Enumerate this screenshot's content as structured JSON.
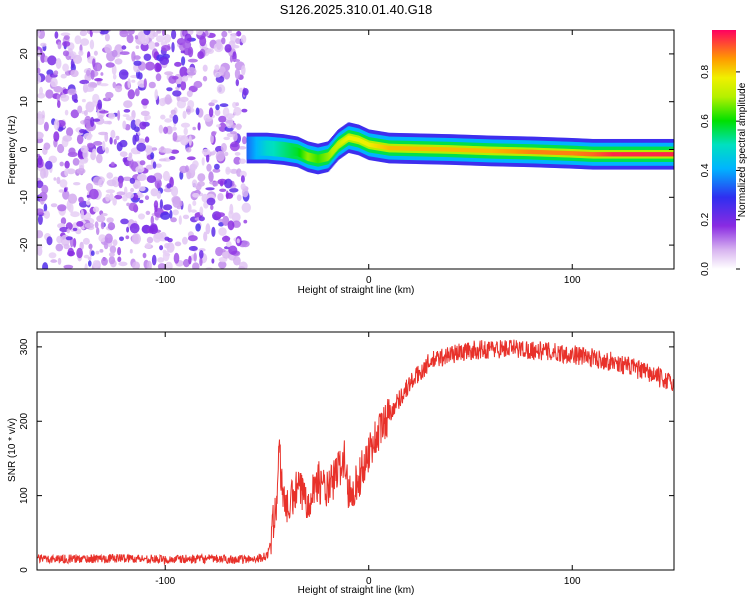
{
  "page_title": "S126.2025.310.01.40.G18",
  "chart_data": [
    {
      "type": "heatmap",
      "title": "S126.2025.310.01.40.G18",
      "xlabel": "Height of straight line (km)",
      "ylabel": "Frequency (Hz)",
      "xlim": [
        -163,
        150
      ],
      "ylim": [
        -25,
        25
      ],
      "x_ticks": [
        -100,
        0,
        100
      ],
      "y_ticks": [
        -20,
        -10,
        0,
        10,
        20
      ],
      "noise_region": [
        -163,
        -60
      ],
      "ridge": {
        "x": [
          -60,
          -50,
          -42,
          -35,
          -30,
          -25,
          -20,
          -15,
          -10,
          -5,
          0,
          10,
          20,
          40,
          60,
          80,
          100,
          110,
          120,
          150
        ],
        "freq": [
          0.3,
          0.3,
          0.0,
          -0.5,
          -1.5,
          -2.0,
          -1.5,
          1.0,
          2.5,
          2.0,
          1.0,
          0.3,
          0.2,
          0.0,
          -0.3,
          -0.5,
          -0.8,
          -1.0,
          -1.0,
          -1.0
        ],
        "amplitude": [
          0.35,
          0.5,
          0.55,
          0.6,
          0.7,
          0.65,
          0.7,
          0.75,
          0.8,
          0.8,
          0.8,
          0.85,
          0.85,
          0.85,
          0.85,
          0.9,
          0.9,
          0.92,
          0.97,
          0.97
        ]
      },
      "colorbar": {
        "label": "Normalized spectral amplitude",
        "range": [
          0,
          0.97
        ],
        "ticks": [
          0.0,
          0.2,
          0.4,
          0.6,
          0.8
        ]
      }
    },
    {
      "type": "line",
      "xlabel": "Height of straight line (km)",
      "ylabel": "SNR (10 * v/v)",
      "xlim": [
        -163,
        150
      ],
      "ylim": [
        0,
        320
      ],
      "x_ticks": [
        -100,
        0,
        100
      ],
      "y_ticks": [
        0,
        100,
        200,
        300
      ],
      "series": [
        {
          "name": "SNR",
          "color": "#e8312a",
          "x": [
            -163,
            -140,
            -120,
            -100,
            -80,
            -60,
            -50,
            -48,
            -45,
            -44,
            -43,
            -40,
            -35,
            -30,
            -25,
            -20,
            -15,
            -12,
            -10,
            -5,
            0,
            5,
            10,
            15,
            20,
            25,
            30,
            40,
            50,
            60,
            70,
            80,
            90,
            100,
            110,
            120,
            130,
            140,
            150
          ],
          "values": [
            15,
            15,
            16,
            14,
            15,
            14,
            18,
            40,
            100,
            170,
            120,
            80,
            110,
            95,
            120,
            105,
            135,
            150,
            105,
            120,
            160,
            185,
            210,
            230,
            250,
            265,
            280,
            290,
            295,
            297,
            298,
            296,
            293,
            290,
            285,
            280,
            272,
            262,
            250
          ]
        }
      ]
    }
  ]
}
